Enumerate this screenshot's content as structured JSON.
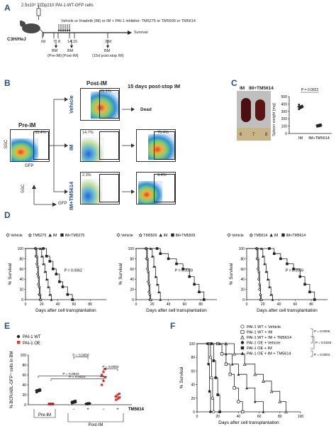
{
  "colors": {
    "panel_label": "#2b4d8c",
    "red": "#e03a2f",
    "dark": "#222222"
  },
  "panelA": {
    "label": "A",
    "cells": "2.5x10⁵ 32Dp210 PAI-1-WT-GFP cells",
    "mouse": "C3H/HeJ",
    "treatment": "Vehicle or Imatinib (IM) or IM + PAI-1 inhibitor: TM5275 or TM5509 or TM5614",
    "survival": "Survival",
    "days": [
      "0d",
      "7",
      "8",
      "14",
      "15",
      "30d"
    ],
    "bm1": [
      "BM",
      "(Pre-IM)"
    ],
    "bm2": [
      "BM",
      "(Post-IM)"
    ],
    "bm3": [
      "BM",
      "(15d post-stop IM)"
    ]
  },
  "panelB": {
    "label": "B",
    "pre_im": "Pre-IM",
    "post_im": "Post-IM",
    "post_stop": "15 days post-stop IM",
    "dead": "Dead",
    "pre_pct": "33.4%",
    "rows": [
      {
        "name": "Vehicle",
        "post": "69.1%",
        "stop": ""
      },
      {
        "name": "IM",
        "post": "14.7%",
        "stop": "75.4%"
      },
      {
        "name": "IM+TM5614",
        "post": "2.3%",
        "stop": "9.4%"
      }
    ],
    "ssc": "SSC",
    "gfp": "GFP"
  },
  "panelC": {
    "label": "C",
    "im": "IM",
    "im_tm": "IM+TM5614",
    "p": "P = 0.0022",
    "ylabel": "Spleen weight [mg]",
    "yticks": [
      "0",
      "100",
      "200",
      "300",
      "400",
      "500"
    ],
    "ruler": [
      "6",
      "7",
      "8"
    ],
    "chart_data": {
      "type": "scatter",
      "categories": [
        "IM",
        "IM+TM5614"
      ],
      "series": [
        {
          "name": "IM",
          "values": [
            330,
            345,
            355,
            360,
            365,
            375,
            390
          ]
        },
        {
          "name": "IM+TM5614",
          "values": [
            95,
            100,
            105,
            110,
            115,
            120
          ]
        }
      ],
      "ylim": [
        0,
        500
      ]
    }
  },
  "panelD": {
    "label": "D",
    "ylabel": "% Survival",
    "xlabel": "Days after cell transplantation",
    "yticks": [
      "0",
      "20",
      "40",
      "60",
      "80",
      "100"
    ],
    "xticks": [
      "0",
      "20",
      "40",
      "60",
      "80"
    ],
    "charts": [
      {
        "legend": [
          "Vehicle",
          "TM5275",
          "IM",
          "IM+TM5275"
        ],
        "p": "P = 0.0062",
        "chart_data": {
          "type": "line",
          "series": [
            {
              "name": "Vehicle",
              "x": [
                0,
                12,
                13,
                14,
                15,
                16,
                17,
                18
              ],
              "y": [
                100,
                100,
                85,
                70,
                50,
                30,
                10,
                0
              ]
            },
            {
              "name": "TM5275",
              "x": [
                0,
                13,
                14,
                15,
                16,
                17,
                18,
                19
              ],
              "y": [
                100,
                100,
                85,
                65,
                45,
                25,
                10,
                0
              ]
            },
            {
              "name": "IM",
              "x": [
                0,
                18,
                20,
                22,
                24,
                26,
                28,
                30,
                32
              ],
              "y": [
                100,
                100,
                85,
                70,
                55,
                40,
                25,
                10,
                0
              ]
            },
            {
              "name": "IM+TM5275",
              "x": [
                0,
                22,
                26,
                30,
                34,
                38,
                42,
                46,
                52,
                58
              ],
              "y": [
                100,
                100,
                85,
                75,
                60,
                50,
                35,
                25,
                10,
                0
              ]
            }
          ]
        }
      },
      {
        "legend": [
          "Vehicle",
          "TM5509",
          "IM",
          "IM+TM5509"
        ],
        "p": "P = 0.0029",
        "chart_data": {
          "type": "line",
          "series": [
            {
              "name": "Vehicle",
              "x": [
                0,
                12,
                13,
                14,
                15,
                16,
                17
              ],
              "y": [
                100,
                100,
                80,
                60,
                35,
                15,
                0
              ]
            },
            {
              "name": "TM5509",
              "x": [
                0,
                13,
                14,
                15,
                16,
                17,
                18
              ],
              "y": [
                100,
                100,
                80,
                55,
                30,
                10,
                0
              ]
            },
            {
              "name": "IM",
              "x": [
                0,
                18,
                20,
                22,
                24,
                26,
                28,
                30
              ],
              "y": [
                100,
                100,
                85,
                65,
                45,
                30,
                15,
                0
              ]
            },
            {
              "name": "IM+TM5509",
              "x": [
                0,
                26,
                30,
                40,
                50,
                58,
                66,
                72,
                78,
                84
              ],
              "y": [
                100,
                100,
                90,
                80,
                70,
                60,
                45,
                30,
                15,
                0
              ]
            }
          ]
        }
      },
      {
        "legend": [
          "Vehicle",
          "TM5614",
          "IM",
          "IM+TM5614"
        ],
        "p": "P = 0.0059",
        "chart_data": {
          "type": "line",
          "series": [
            {
              "name": "Vehicle",
              "x": [
                0,
                12,
                13,
                14,
                15,
                16,
                17
              ],
              "y": [
                100,
                100,
                80,
                60,
                40,
                20,
                0
              ]
            },
            {
              "name": "TM5614",
              "x": [
                0,
                13,
                14,
                15,
                16,
                17,
                18
              ],
              "y": [
                100,
                100,
                80,
                55,
                30,
                10,
                0
              ]
            },
            {
              "name": "IM",
              "x": [
                0,
                18,
                20,
                22,
                24,
                26,
                28,
                30,
                32
              ],
              "y": [
                100,
                100,
                85,
                70,
                55,
                40,
                25,
                10,
                0
              ]
            },
            {
              "name": "IM+TM5614",
              "x": [
                0,
                28,
                34,
                42,
                50,
                58,
                66,
                72,
                78,
                84
              ],
              "y": [
                100,
                100,
                90,
                80,
                70,
                60,
                45,
                30,
                15,
                0
              ]
            }
          ]
        }
      }
    ]
  },
  "panelE": {
    "label": "E",
    "legend": [
      "PAI-1 WT",
      "PAI-1 OE"
    ],
    "ylabel": "% BCR/ABL-GFP⁺ cells in BM",
    "yticks": [
      "0",
      "20",
      "40",
      "60",
      "80",
      "100"
    ],
    "pre": "Pre-IM",
    "post": "Post-IM",
    "tm": "TM5614",
    "signs": [
      "−",
      "−",
      "+",
      "+"
    ],
    "pvals": [
      "P = 0.0022",
      "P = 0.0022",
      "P = 0.0092",
      "P = 0.0056"
    ],
    "chart_data": {
      "type": "scatter",
      "categories": [
        "Pre-IM WT",
        "Pre-IM OE",
        "Post-IM WT -",
        "Post-IM WT +",
        "Post-IM OE -",
        "Post-IM OE +"
      ],
      "series": [
        {
          "name": "PAI-1 WT",
          "groups": [
            [
              25,
              27,
              28,
              29,
              30,
              31
            ],
            [],
            [
              3,
              4,
              5,
              6,
              7,
              8
            ],
            [
              1,
              1,
              2,
              2,
              3,
              3
            ],
            [],
            []
          ]
        },
        {
          "name": "PAI-1 OE",
          "groups": [
            [],
            [
              1,
              1,
              1,
              2,
              2,
              2
            ],
            [],
            [],
            [
              40,
              48,
              55,
              60,
              66,
              72
            ],
            [
              10,
              12,
              14,
              17,
              20,
              22
            ]
          ]
        }
      ],
      "ylim": [
        0,
        100
      ]
    }
  },
  "panelF": {
    "label": "F",
    "legend": [
      "PAI-1 WT + Vehicle",
      "PAI-1 WT + IM",
      "PAI-1 WT + IM + TM5614",
      "PAI-1 OE + Vehicle",
      "PAI-1 OE + IM",
      "PAI-1 OE + IM + TM5614"
    ],
    "pvals": [
      "P = 0.0006",
      "P = 0.0226",
      "P = 0.0004"
    ],
    "ylabel": "% Survival",
    "xlabel": "Days after cell transplantation",
    "yticks": [
      "0",
      "20",
      "40",
      "60",
      "80",
      "100"
    ],
    "xticks": [
      "0",
      "20",
      "40",
      "60",
      "80",
      "100"
    ],
    "chart_data": {
      "type": "line",
      "series": [
        {
          "name": "PAI-1 WT + Vehicle",
          "x": [
            0,
            12,
            13,
            14,
            15,
            16
          ],
          "y": [
            100,
            100,
            80,
            50,
            20,
            0
          ]
        },
        {
          "name": "PAI-1 WT + IM",
          "x": [
            0,
            20,
            24,
            28,
            32,
            36,
            40,
            44
          ],
          "y": [
            100,
            100,
            85,
            70,
            55,
            35,
            15,
            0
          ]
        },
        {
          "name": "PAI-1 WT + IM + TM5614",
          "x": [
            0,
            28,
            36,
            46,
            56,
            64,
            72,
            80,
            86
          ],
          "y": [
            100,
            100,
            85,
            70,
            55,
            45,
            30,
            15,
            0
          ]
        },
        {
          "name": "PAI-1 OE + Vehicle",
          "x": [
            0,
            10,
            11,
            12,
            13
          ],
          "y": [
            100,
            100,
            70,
            30,
            0
          ]
        },
        {
          "name": "PAI-1 OE + IM",
          "x": [
            0,
            14,
            16,
            18,
            20,
            22
          ],
          "y": [
            100,
            100,
            75,
            50,
            25,
            0
          ]
        },
        {
          "name": "PAI-1 OE + IM + TM5614",
          "x": [
            0,
            22,
            28,
            34,
            40,
            48,
            56,
            64
          ],
          "y": [
            100,
            100,
            85,
            70,
            55,
            35,
            15,
            0
          ]
        }
      ]
    }
  }
}
